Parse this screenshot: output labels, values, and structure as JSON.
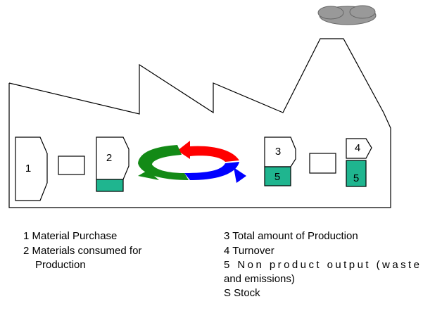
{
  "labels": {
    "purchase": "1",
    "consumed": "2",
    "production": "3",
    "turnover": "4",
    "waste_a": "5",
    "waste_b": "5"
  },
  "legend": {
    "left": [
      "1 Material Purchase",
      "2 Materials consumed for",
      "Production"
    ],
    "right": [
      "3 Total amount of Production",
      "4 Turnover",
      "5 Non product output (waste",
      "and emissions)",
      "S Stock"
    ]
  }
}
